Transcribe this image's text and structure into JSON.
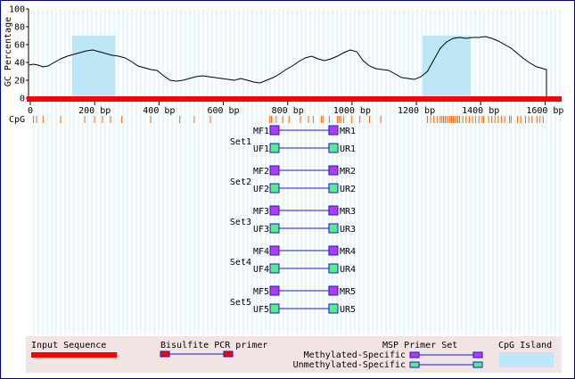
{
  "chart_data": {
    "type": "line",
    "title": "",
    "ylabel": "GC Percentage",
    "y_ticks": [
      "0",
      "20",
      "40",
      "60",
      "80",
      "100"
    ],
    "ylim": [
      0,
      100
    ],
    "xlim": [
      0,
      1640
    ],
    "x_ticks": [
      {
        "value": 0,
        "label": "0"
      },
      {
        "value": 200,
        "label": "200 bp"
      },
      {
        "value": 400,
        "label": "400 bp"
      },
      {
        "value": 600,
        "label": "600 bp"
      },
      {
        "value": 800,
        "label": "800 bp"
      },
      {
        "value": 1000,
        "label": "1000 bp"
      },
      {
        "value": 1200,
        "label": "1200 bp"
      },
      {
        "value": 1400,
        "label": "1400 bp"
      },
      {
        "value": 1600,
        "label": "1600 bp"
      }
    ],
    "sequence_range": [
      0,
      1610
    ],
    "cpg_islands": [
      [
        135,
        270
      ],
      [
        1225,
        1375
      ]
    ],
    "gc_series": {
      "name": "GC Percentage",
      "x": [
        0,
        15,
        30,
        45,
        60,
        80,
        100,
        120,
        140,
        160,
        180,
        200,
        220,
        240,
        260,
        280,
        300,
        320,
        340,
        360,
        380,
        400,
        420,
        440,
        460,
        480,
        500,
        520,
        540,
        560,
        580,
        600,
        620,
        640,
        660,
        680,
        700,
        720,
        740,
        760,
        780,
        800,
        820,
        840,
        860,
        880,
        900,
        920,
        940,
        960,
        980,
        1000,
        1020,
        1040,
        1060,
        1080,
        1100,
        1120,
        1140,
        1160,
        1180,
        1200,
        1220,
        1240,
        1260,
        1280,
        1300,
        1320,
        1340,
        1360,
        1380,
        1400,
        1420,
        1440,
        1460,
        1480,
        1500,
        1520,
        1540,
        1560,
        1580,
        1600,
        1610
      ],
      "y": [
        37,
        38,
        37,
        35,
        36,
        40,
        44,
        47,
        49,
        51,
        53,
        54,
        52,
        50,
        48,
        47,
        45,
        41,
        36,
        34,
        32,
        31,
        25,
        20,
        19,
        20,
        22,
        24,
        25,
        24,
        23,
        22,
        21,
        20,
        22,
        20,
        18,
        17,
        20,
        23,
        27,
        32,
        36,
        41,
        45,
        47,
        44,
        42,
        44,
        47,
        51,
        54,
        52,
        42,
        36,
        33,
        32,
        31,
        27,
        23,
        22,
        21,
        24,
        30,
        43,
        56,
        63,
        67,
        68,
        67,
        68,
        68,
        69,
        67,
        64,
        60,
        56,
        50,
        44,
        39,
        35,
        33,
        32
      ]
    },
    "cpg_sites": [
      15,
      25,
      45,
      100,
      175,
      205,
      230,
      255,
      290,
      380,
      470,
      515,
      565,
      750,
      755,
      770,
      790,
      810,
      845,
      870,
      885,
      910,
      915,
      935,
      960,
      965,
      970,
      980,
      1005,
      1030,
      1060,
      1095,
      1240,
      1250,
      1260,
      1270,
      1280,
      1285,
      1290,
      1295,
      1300,
      1305,
      1310,
      1315,
      1320,
      1325,
      1330,
      1335,
      1340,
      1350,
      1360,
      1370,
      1380,
      1390,
      1400,
      1410,
      1415,
      1430,
      1440,
      1450,
      1460,
      1470,
      1480,
      1495,
      1500,
      1520,
      1530,
      1545,
      1555,
      1565,
      1580,
      1590,
      1600
    ]
  },
  "cpg_label": "CpG",
  "primer_sets": [
    {
      "name": "Set1",
      "mf": "MF1",
      "mr": "MR1",
      "uf": "UF1",
      "ur": "UR1"
    },
    {
      "name": "Set2",
      "mf": "MF2",
      "mr": "MR2",
      "uf": "UF2",
      "ur": "UR2"
    },
    {
      "name": "Set3",
      "mf": "MF3",
      "mr": "MR3",
      "uf": "UF3",
      "ur": "UR3"
    },
    {
      "name": "Set4",
      "mf": "MF4",
      "mr": "MR4",
      "uf": "UF4",
      "ur": "UR4"
    },
    {
      "name": "Set5",
      "mf": "MF5",
      "mr": "MR5",
      "uf": "UF5",
      "ur": "UR5"
    }
  ],
  "legend": {
    "input_sequence": "Input Sequence",
    "bisulfite_primer": "Bisulfite PCR primer",
    "msp_primer_set": "MSP Primer Set",
    "methylated": "Methylated-Specific",
    "unmethylated": "Unmethylated-Specific",
    "cpg_island": "CpG Island"
  },
  "colors": {
    "sequence": "#ff0000",
    "cpg_site": "#ff6600",
    "island": "#bde6f7",
    "vgrid": "#cdeef7",
    "methylated": "#b23cf2",
    "unmethylated": "#55ee88",
    "primer_line": "#1a1acc",
    "legend_bg": "#f3e4e4",
    "border": "#000080"
  }
}
